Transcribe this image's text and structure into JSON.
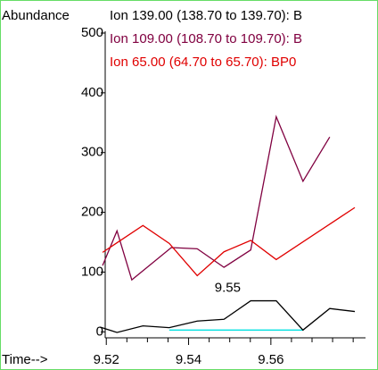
{
  "chart_data": {
    "type": "line",
    "ylabel": "Abundance",
    "xlabel": "Time-->",
    "xlim": [
      9.518,
      9.583
    ],
    "ylim": [
      -10,
      500
    ],
    "xticks": [
      9.52,
      9.54,
      9.56
    ],
    "xminorticks": [
      9.525,
      9.53,
      9.535,
      9.545,
      9.55,
      9.555,
      9.565,
      9.57,
      9.575,
      9.58
    ],
    "yticks": [
      0,
      100,
      200,
      300,
      400,
      500
    ],
    "series": [
      {
        "name": "Ion 139.00 (138.70 to 139.70): B",
        "color": "#000000",
        "x": [
          9.5185,
          9.5226,
          9.5289,
          9.5353,
          9.5421,
          9.5486,
          9.5551,
          9.5613,
          9.5678,
          9.5743,
          9.5804
        ],
        "values": [
          8,
          -1,
          10,
          7,
          18,
          21,
          52,
          52,
          3,
          39,
          34
        ]
      },
      {
        "name": "Ion 109.00 (108.70 to 109.70): B",
        "color": "#800040",
        "x": [
          9.5191,
          9.5226,
          9.5262,
          9.5358,
          9.5421,
          9.5486,
          9.5551,
          9.5613,
          9.5678,
          9.5743
        ],
        "values": [
          111,
          169,
          87,
          141,
          139,
          108,
          137,
          360,
          252,
          326
        ]
      },
      {
        "name": "Ion  65.00 (64.70 to 65.70): BP0",
        "color": "#e00000",
        "x": [
          9.5191,
          9.5289,
          9.5353,
          9.5421,
          9.5486,
          9.5551,
          9.5613,
          9.5804
        ],
        "values": [
          133,
          178,
          148,
          94,
          134,
          153,
          121,
          208
        ]
      }
    ],
    "baseline": {
      "color": "#00e0e0",
      "x": [
        9.5353,
        9.5678
      ],
      "values": [
        3,
        3
      ]
    },
    "annotations": [
      {
        "text": "9.55",
        "x": 9.5495,
        "y": 55
      }
    ]
  }
}
